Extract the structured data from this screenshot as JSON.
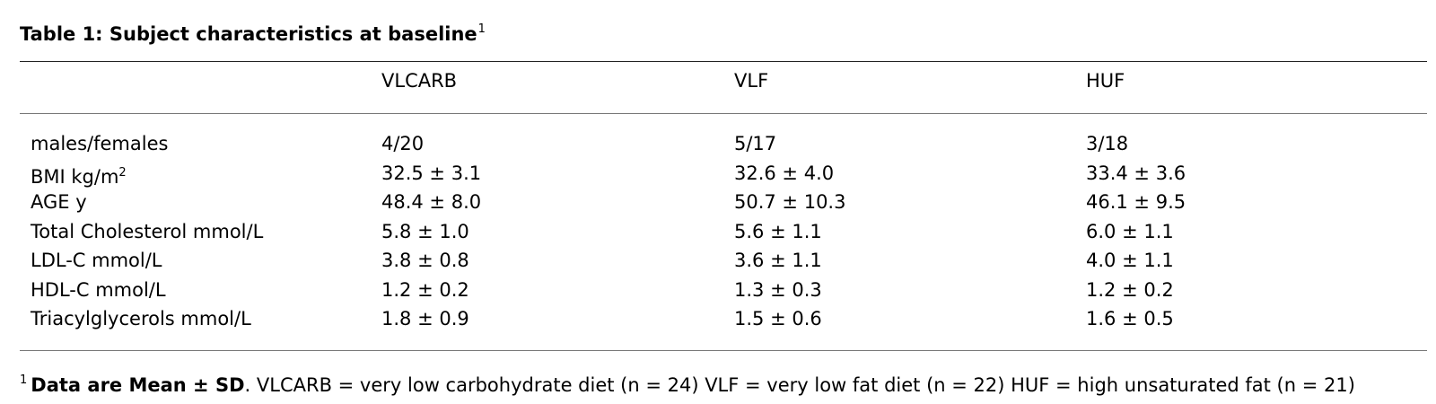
{
  "table": {
    "caption": "Table 1: Subject characteristics at baseline",
    "caption_footnote_mark": "1",
    "columns": [
      "",
      "VLCARB",
      "VLF",
      "HUF"
    ],
    "rows": [
      {
        "label": "males/females",
        "values": [
          "4/20",
          "5/17",
          "3/18"
        ]
      },
      {
        "label": "BMI kg/m",
        "label_sup": "2",
        "values": [
          "32.5 ± 3.1",
          "32.6 ± 4.0",
          "33.4 ± 3.6"
        ]
      },
      {
        "label": "AGE y",
        "values": [
          "48.4 ± 8.0",
          "50.7 ± 10.3",
          "46.1 ± 9.5"
        ]
      },
      {
        "label": "Total Cholesterol mmol/L",
        "values": [
          "5.8 ± 1.0",
          "5.6 ± 1.1",
          "6.0 ± 1.1"
        ]
      },
      {
        "label": "LDL-C mmol/L",
        "values": [
          "3.8 ± 0.8",
          "3.6 ± 1.1",
          "4.0 ± 1.1"
        ]
      },
      {
        "label": "HDL-C mmol/L",
        "values": [
          "1.2 ± 0.2",
          "1.3 ± 0.3",
          "1.2 ± 0.2"
        ]
      },
      {
        "label": "Triacylglycerols mmol/L",
        "values": [
          "1.8 ± 0.9",
          "1.5 ± 0.6",
          "1.6 ± 0.5"
        ]
      }
    ],
    "footnote": {
      "mark": "1",
      "bold": "Data are Mean ± SD",
      "text": ". VLCARB = very low carbohydrate diet (n = 24) VLF = very low fat diet (n = 22) HUF = high unsaturated fat (n = 21)"
    }
  }
}
